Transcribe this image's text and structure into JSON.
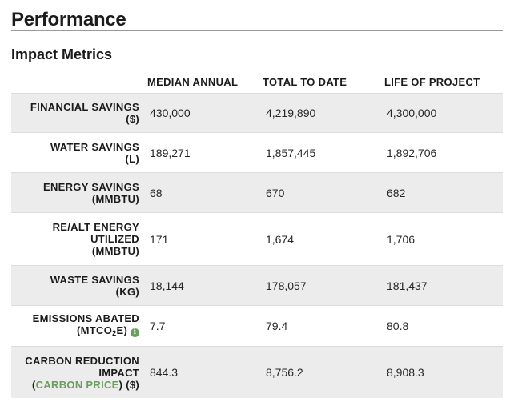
{
  "page": {
    "title": "Performance",
    "section_title": "Impact Metrics"
  },
  "table": {
    "columns": [
      "MEDIAN ANNUAL",
      "TOTAL TO DATE",
      "LIFE OF PROJECT"
    ],
    "rows": [
      {
        "label_lines": [
          "FINANCIAL SAVINGS",
          "($)"
        ],
        "values": [
          "430,000",
          "4,219,890",
          "4,300,000"
        ]
      },
      {
        "label_lines": [
          "WATER SAVINGS",
          "(L)"
        ],
        "values": [
          "189,271",
          "1,857,445",
          "1,892,706"
        ]
      },
      {
        "label_lines": [
          "ENERGY SAVINGS",
          "(MMBTU)"
        ],
        "values": [
          "68",
          "670",
          "682"
        ]
      },
      {
        "label_lines": [
          "RE/ALT ENERGY",
          "UTILIZED",
          "(MMBTU)"
        ],
        "values": [
          "171",
          "1,674",
          "1,706"
        ]
      },
      {
        "label_lines": [
          "WASTE SAVINGS",
          "(KG)"
        ],
        "values": [
          "18,144",
          "178,057",
          "181,437"
        ]
      },
      {
        "label_lines": [
          "EMISSIONS ABATED"
        ],
        "label_unit_prefix": "(MTCO",
        "label_unit_sub": "2",
        "label_unit_suffix": "E)",
        "info_icon": "info-icon",
        "values": [
          "7.7",
          "79.4",
          "80.8"
        ]
      },
      {
        "label_lines": [
          "CARBON REDUCTION",
          "IMPACT"
        ],
        "label_link_prefix": "(",
        "label_link": "CARBON PRICE",
        "label_link_suffix": ") ($)",
        "values": [
          "844.3",
          "8,756.2",
          "8,908.3"
        ]
      }
    ]
  },
  "colors": {
    "accent_green": "#6b9e5e",
    "row_shade": "#ececec"
  }
}
